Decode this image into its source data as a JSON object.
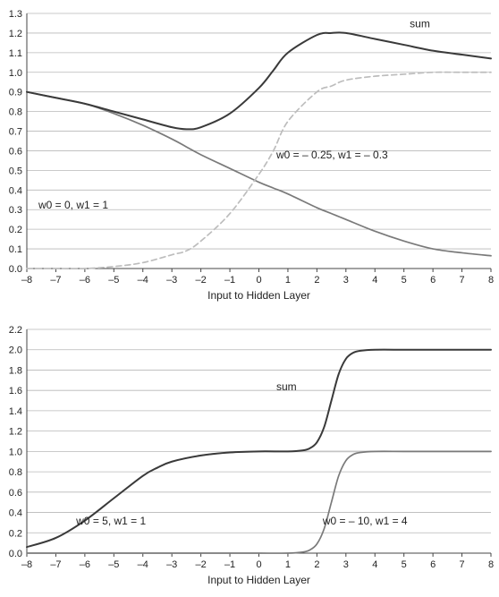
{
  "chart_data": [
    {
      "type": "line",
      "xlabel": "Input to Hidden Layer",
      "ylabel": "",
      "title": "",
      "xlim": [
        -8,
        8
      ],
      "ylim": [
        0,
        1.3
      ],
      "grid": "horizontal",
      "x_ticks": [
        "–8",
        "–7",
        "–6",
        "–5",
        "–4",
        "–3",
        "–2",
        "–1",
        "0",
        "1",
        "2",
        "3",
        "4",
        "5",
        "6",
        "7",
        "8"
      ],
      "y_ticks": [
        "0.0",
        "0.1",
        "0.2",
        "0.3",
        "0.4",
        "0.5",
        "0.6",
        "0.7",
        "0.8",
        "0.9",
        "1.0",
        "1.1",
        "1.2",
        "1.3"
      ],
      "x": [
        -8,
        -7,
        -6,
        -5,
        -4,
        -3,
        -2.5,
        -2,
        -1,
        0,
        0.5,
        1,
        2,
        2.5,
        3,
        4,
        5,
        6,
        7,
        8
      ],
      "series": [
        {
          "key": "w0_0_w1_1",
          "style": "solid",
          "color": "#7a7a7a",
          "values": [
            0.9,
            0.87,
            0.84,
            0.79,
            0.73,
            0.66,
            0.62,
            0.58,
            0.51,
            0.44,
            0.41,
            0.38,
            0.31,
            0.28,
            0.25,
            0.19,
            0.14,
            0.1,
            0.08,
            0.065
          ]
        },
        {
          "key": "w0_-0.25_w1_-0.3",
          "style": "dashed",
          "color": "#bdbdbd",
          "values": [
            0.0,
            0.0,
            0.0,
            0.01,
            0.03,
            0.07,
            0.09,
            0.14,
            0.28,
            0.48,
            0.6,
            0.75,
            0.9,
            0.93,
            0.96,
            0.98,
            0.99,
            1.0,
            1.0,
            1.0
          ]
        },
        {
          "key": "sum",
          "style": "solid",
          "color": "#3a3a3a",
          "values": [
            0.9,
            0.87,
            0.84,
            0.8,
            0.76,
            0.72,
            0.71,
            0.72,
            0.79,
            0.92,
            1.01,
            1.1,
            1.19,
            1.2,
            1.2,
            1.17,
            1.14,
            1.11,
            1.09,
            1.07
          ]
        }
      ],
      "annotations": [
        {
          "text": "sum",
          "x": 5.2,
          "y": 1.23
        },
        {
          "text": "w0 = – 0.25, w1 = – 0.3",
          "x": 0.6,
          "y": 0.56
        },
        {
          "text": "w0 = 0, w1 = 1",
          "x": -7.6,
          "y": 0.305
        }
      ]
    },
    {
      "type": "line",
      "xlabel": "Input to Hidden Layer",
      "ylabel": "",
      "title": "",
      "xlim": [
        -8,
        8
      ],
      "ylim": [
        0,
        2.2
      ],
      "grid": "horizontal",
      "x_ticks": [
        "–8",
        "–7",
        "–6",
        "–5",
        "–4",
        "–3",
        "–2",
        "–1",
        "0",
        "1",
        "2",
        "3",
        "4",
        "5",
        "6",
        "7",
        "8"
      ],
      "y_ticks": [
        "0.0",
        "0.2",
        "0.4",
        "0.6",
        "0.8",
        "1.0",
        "1.2",
        "1.4",
        "1.6",
        "1.8",
        "2.0",
        "2.2"
      ],
      "x": [
        -8,
        -7,
        -6,
        -5,
        -4,
        -3.5,
        -3,
        -2,
        -1,
        0,
        1,
        1.5,
        1.75,
        2,
        2.25,
        2.5,
        2.75,
        3,
        3.25,
        3.5,
        4,
        5,
        6,
        7,
        8
      ],
      "series": [
        {
          "key": "w0_5_w1_1",
          "style": "solid",
          "color": "#c4c4c4",
          "values": [
            0.06,
            0.15,
            0.32,
            0.54,
            0.76,
            0.84,
            0.9,
            0.96,
            0.99,
            1.0,
            1.0,
            1.0,
            1.0,
            1.0,
            1.0,
            1.0,
            1.0,
            1.0,
            1.0,
            1.0,
            1.0,
            1.0,
            1.0,
            1.0,
            1.0
          ]
        },
        {
          "key": "w0_-10_w1_4",
          "style": "solid",
          "color": "#7a7a7a",
          "values": [
            0.0,
            0.0,
            0.0,
            0.0,
            0.0,
            0.0,
            0.0,
            0.0,
            0.0,
            0.0,
            0.0,
            0.01,
            0.03,
            0.09,
            0.24,
            0.5,
            0.76,
            0.91,
            0.97,
            0.99,
            1.0,
            1.0,
            1.0,
            1.0,
            1.0
          ]
        },
        {
          "key": "sum",
          "style": "solid",
          "color": "#3a3a3a",
          "values": [
            0.06,
            0.15,
            0.32,
            0.54,
            0.76,
            0.84,
            0.9,
            0.96,
            0.99,
            1.0,
            1.0,
            1.01,
            1.03,
            1.09,
            1.24,
            1.5,
            1.76,
            1.91,
            1.97,
            1.99,
            2.0,
            2.0,
            2.0,
            2.0,
            2.0
          ]
        }
      ],
      "annotations": [
        {
          "text": "sum",
          "x": 0.6,
          "y": 1.6
        },
        {
          "text": "w0 = 5, w1 = 1",
          "x": -6.3,
          "y": 0.28
        },
        {
          "text": "w0 = – 10, w1 = 4",
          "x": 2.2,
          "y": 0.28
        }
      ]
    }
  ]
}
